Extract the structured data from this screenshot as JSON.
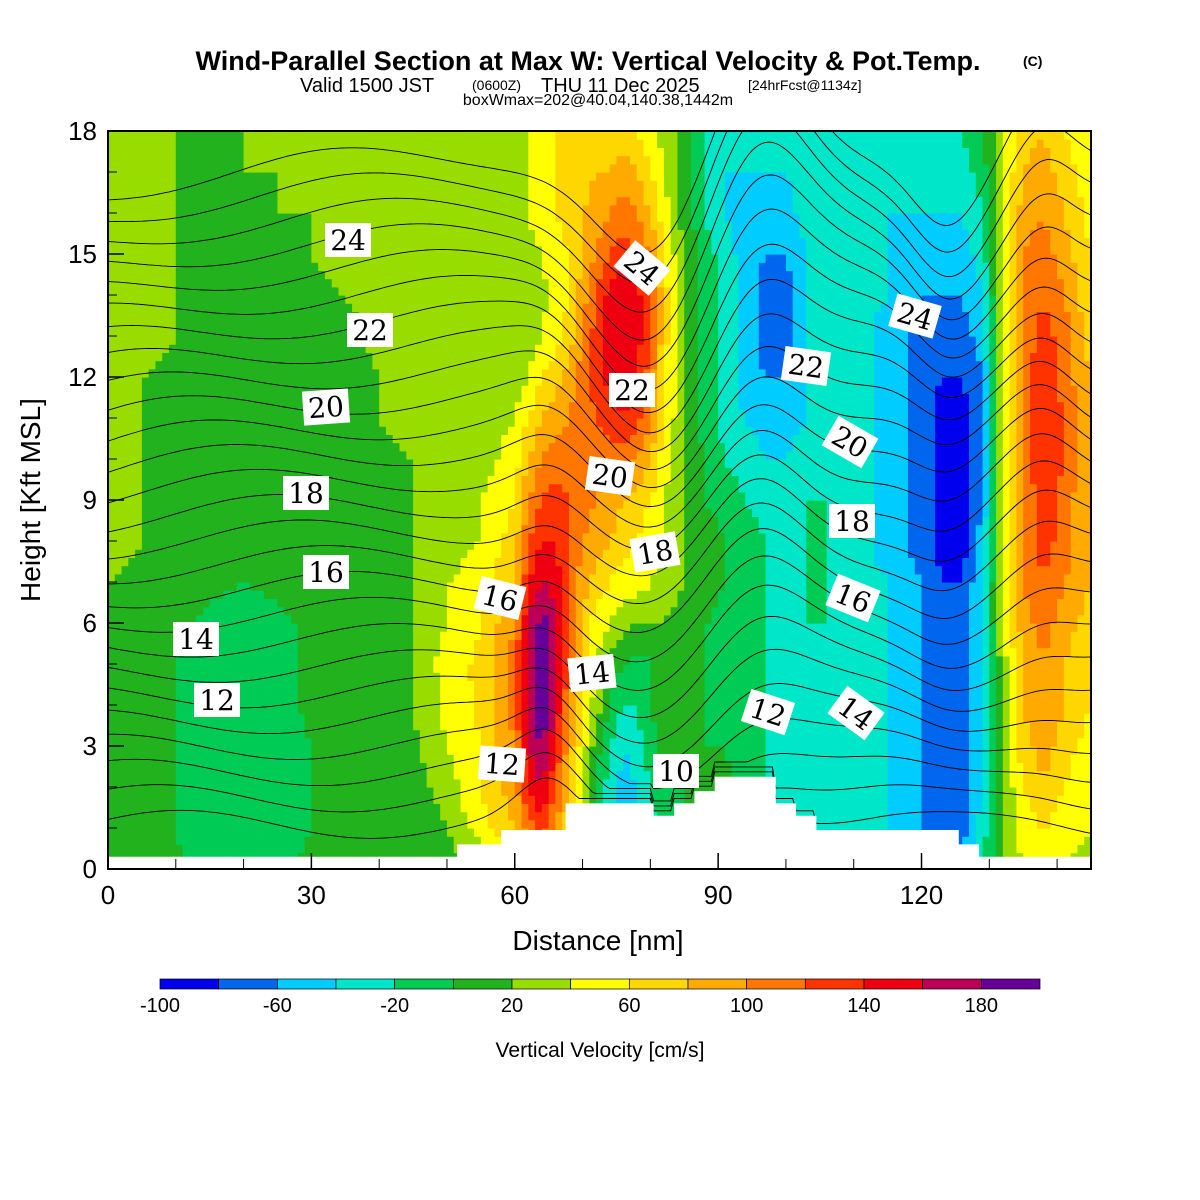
{
  "title": {
    "main": "Wind-Parallel Section at Max W: Vertical Velocity & Pot.Temp.",
    "main_mark": "(C)",
    "valid_a": "Valid 1500 JST",
    "valid_b": "(0600Z)",
    "valid_c": "THU 11 Dec 2025",
    "valid_d": "[24hrFcst@1134z]",
    "box": "boxWmax=202@40.04,140.38,1442m"
  },
  "chart_data": {
    "type": "heatmap",
    "xlabel": "Distance [nm]",
    "ylabel": "Height [Kft MSL]",
    "xlim": [
      0,
      145
    ],
    "ylim": [
      0,
      18
    ],
    "x_ticks": [
      0,
      30,
      60,
      90,
      120
    ],
    "y_ticks": [
      0,
      3,
      6,
      9,
      12,
      15,
      18
    ],
    "colorbar": {
      "title": "Vertical Velocity [cm/s]",
      "levels": [
        -100,
        -80,
        -60,
        -40,
        -20,
        0,
        20,
        40,
        60,
        80,
        100,
        120,
        140,
        160,
        180,
        200
      ],
      "tick_labels": [
        "-100",
        "-60",
        "-20",
        "20",
        "60",
        "100",
        "140",
        "180"
      ],
      "tick_values": [
        -100,
        -60,
        -20,
        20,
        60,
        100,
        140,
        180
      ],
      "colors": [
        "#0000ee",
        "#0066ee",
        "#00ccff",
        "#00e6c8",
        "#00cc55",
        "#22b21e",
        "#99dd00",
        "#ffff00",
        "#ffd700",
        "#ffaa00",
        "#ff7700",
        "#ff3300",
        "#ee0011",
        "#bb0055",
        "#660099"
      ]
    },
    "vertical_velocity_cms": {
      "x": [
        0,
        5,
        10,
        15,
        20,
        25,
        30,
        35,
        40,
        45,
        50,
        55,
        60,
        62,
        64,
        66,
        68,
        70,
        72,
        74,
        76,
        78,
        80,
        82,
        85,
        88,
        91,
        94,
        97,
        100,
        103,
        106,
        110,
        115,
        120,
        123,
        126,
        129,
        132,
        135,
        138,
        141,
        145
      ],
      "y": [
        0,
        1,
        2,
        3,
        4,
        5,
        6,
        7,
        8,
        9,
        10,
        11,
        12,
        13,
        14,
        15,
        16,
        17,
        18
      ],
      "w_rows": [
        [
          10,
          8,
          2,
          -5,
          -10,
          -5,
          5,
          5,
          0,
          5,
          10,
          20,
          30,
          60,
          80,
          60,
          40,
          20,
          -10,
          -40,
          -50,
          -40,
          -20,
          0,
          0,
          -5,
          0,
          -10,
          -20,
          -30,
          -30,
          -20,
          -30,
          -40,
          -50,
          -60,
          -50,
          -20,
          20,
          40,
          50,
          40,
          30
        ],
        [
          10,
          8,
          0,
          -10,
          -15,
          -10,
          0,
          5,
          0,
          5,
          20,
          50,
          80,
          110,
          130,
          100,
          60,
          30,
          0,
          -40,
          -60,
          -50,
          -30,
          -10,
          0,
          0,
          5,
          -10,
          -20,
          -30,
          -30,
          -25,
          -30,
          -40,
          -60,
          -80,
          -70,
          -30,
          20,
          50,
          60,
          50,
          40
        ],
        [
          10,
          8,
          0,
          -10,
          -15,
          -10,
          0,
          5,
          0,
          10,
          30,
          60,
          90,
          140,
          160,
          120,
          80,
          40,
          0,
          -30,
          -50,
          -40,
          -20,
          0,
          0,
          0,
          5,
          -5,
          -20,
          -30,
          -30,
          -25,
          -30,
          -40,
          -60,
          -80,
          -80,
          -40,
          20,
          60,
          80,
          60,
          40
        ],
        [
          10,
          8,
          0,
          -10,
          -15,
          -10,
          0,
          5,
          5,
          15,
          40,
          60,
          100,
          160,
          180,
          140,
          90,
          50,
          10,
          -20,
          -40,
          -30,
          -10,
          10,
          5,
          0,
          0,
          -10,
          -20,
          -30,
          -30,
          -20,
          -30,
          -40,
          -60,
          -80,
          -80,
          -40,
          30,
          70,
          90,
          70,
          50
        ],
        [
          15,
          10,
          0,
          -10,
          -15,
          -10,
          5,
          5,
          5,
          20,
          45,
          65,
          110,
          170,
          200,
          160,
          100,
          60,
          30,
          0,
          -20,
          -20,
          0,
          10,
          10,
          0,
          -5,
          -10,
          -20,
          -30,
          -25,
          -20,
          -25,
          -40,
          -60,
          -80,
          -80,
          -40,
          30,
          80,
          100,
          80,
          60
        ],
        [
          15,
          10,
          0,
          -10,
          -15,
          -10,
          5,
          10,
          10,
          20,
          50,
          65,
          110,
          170,
          200,
          170,
          110,
          70,
          40,
          15,
          0,
          -10,
          0,
          10,
          10,
          0,
          -5,
          -10,
          -20,
          -30,
          -25,
          -20,
          -25,
          -40,
          -60,
          -80,
          -80,
          -40,
          30,
          80,
          100,
          80,
          60
        ],
        [
          20,
          15,
          5,
          -5,
          -10,
          -5,
          5,
          10,
          10,
          20,
          40,
          60,
          100,
          160,
          190,
          170,
          120,
          80,
          50,
          40,
          30,
          20,
          20,
          20,
          10,
          0,
          -5,
          -10,
          -20,
          -30,
          -20,
          -20,
          -25,
          -40,
          -60,
          -80,
          -80,
          -40,
          40,
          90,
          110,
          90,
          70
        ],
        [
          20,
          15,
          10,
          5,
          0,
          5,
          10,
          10,
          10,
          20,
          40,
          50,
          80,
          140,
          160,
          150,
          120,
          90,
          70,
          60,
          50,
          50,
          40,
          30,
          20,
          10,
          0,
          -10,
          -20,
          -30,
          -20,
          -20,
          -30,
          -40,
          -60,
          -80,
          -80,
          -40,
          40,
          100,
          120,
          100,
          80
        ],
        [
          25,
          20,
          15,
          10,
          5,
          10,
          10,
          10,
          10,
          20,
          30,
          40,
          70,
          120,
          140,
          140,
          120,
          100,
          90,
          80,
          70,
          60,
          50,
          40,
          20,
          10,
          0,
          -10,
          -20,
          -30,
          -20,
          -20,
          -30,
          -50,
          -70,
          -90,
          -90,
          -50,
          40,
          100,
          130,
          110,
          80
        ],
        [
          25,
          20,
          15,
          10,
          10,
          10,
          10,
          10,
          10,
          20,
          30,
          40,
          60,
          100,
          120,
          130,
          120,
          110,
          100,
          90,
          80,
          70,
          60,
          40,
          20,
          0,
          -10,
          -20,
          -30,
          -30,
          -20,
          -20,
          -30,
          -50,
          -70,
          -90,
          -100,
          -60,
          40,
          100,
          130,
          110,
          80
        ],
        [
          25,
          20,
          15,
          10,
          10,
          10,
          10,
          10,
          15,
          20,
          25,
          30,
          50,
          80,
          100,
          110,
          110,
          110,
          110,
          110,
          110,
          100,
          80,
          50,
          20,
          0,
          -20,
          -30,
          -40,
          -40,
          -30,
          -20,
          -30,
          -50,
          -70,
          -90,
          -90,
          -60,
          40,
          110,
          140,
          120,
          80
        ],
        [
          25,
          20,
          15,
          10,
          10,
          10,
          10,
          10,
          20,
          25,
          30,
          30,
          40,
          60,
          80,
          90,
          100,
          110,
          120,
          130,
          140,
          130,
          100,
          60,
          20,
          -10,
          -30,
          -40,
          -50,
          -50,
          -40,
          -20,
          -30,
          -50,
          -70,
          -90,
          -90,
          -60,
          40,
          110,
          140,
          120,
          80
        ],
        [
          30,
          20,
          15,
          15,
          10,
          10,
          10,
          10,
          20,
          30,
          30,
          30,
          30,
          40,
          60,
          70,
          90,
          110,
          130,
          150,
          150,
          140,
          110,
          60,
          20,
          -10,
          -30,
          -50,
          -60,
          -60,
          -40,
          -20,
          -30,
          -50,
          -70,
          -80,
          -80,
          -60,
          40,
          110,
          140,
          110,
          80
        ],
        [
          30,
          25,
          20,
          15,
          10,
          10,
          15,
          15,
          25,
          30,
          30,
          30,
          30,
          30,
          40,
          50,
          70,
          100,
          130,
          150,
          160,
          150,
          120,
          70,
          20,
          -10,
          -30,
          -50,
          -70,
          -70,
          -40,
          -20,
          -30,
          -50,
          -70,
          -70,
          -70,
          -50,
          40,
          100,
          130,
          110,
          70
        ],
        [
          30,
          25,
          20,
          15,
          10,
          10,
          15,
          20,
          25,
          30,
          30,
          30,
          30,
          30,
          35,
          45,
          60,
          90,
          120,
          150,
          160,
          150,
          120,
          70,
          20,
          -10,
          -30,
          -50,
          -70,
          -70,
          -40,
          -20,
          -30,
          -40,
          -60,
          -60,
          -60,
          -40,
          40,
          100,
          120,
          100,
          60
        ],
        [
          30,
          25,
          20,
          15,
          15,
          15,
          20,
          25,
          30,
          30,
          30,
          30,
          30,
          35,
          40,
          50,
          60,
          80,
          100,
          120,
          130,
          120,
          100,
          60,
          20,
          -10,
          -30,
          -50,
          -60,
          -60,
          -40,
          -20,
          -30,
          -40,
          -50,
          -50,
          -50,
          -30,
          40,
          100,
          110,
          90,
          60
        ],
        [
          25,
          20,
          20,
          15,
          15,
          20,
          20,
          25,
          30,
          30,
          30,
          30,
          30,
          40,
          50,
          60,
          70,
          80,
          90,
          100,
          110,
          100,
          80,
          50,
          10,
          -20,
          -40,
          -50,
          -50,
          -50,
          -30,
          -20,
          -30,
          -40,
          -40,
          -40,
          -40,
          -20,
          40,
          90,
          100,
          80,
          50
        ],
        [
          25,
          20,
          20,
          15,
          20,
          20,
          25,
          25,
          30,
          30,
          30,
          30,
          30,
          40,
          50,
          60,
          70,
          70,
          80,
          80,
          90,
          80,
          60,
          40,
          10,
          -20,
          -40,
          -40,
          -40,
          -40,
          -30,
          -20,
          -30,
          -40,
          -40,
          -40,
          -30,
          -10,
          40,
          80,
          90,
          70,
          50
        ],
        [
          25,
          20,
          20,
          20,
          20,
          20,
          25,
          25,
          30,
          30,
          30,
          30,
          30,
          40,
          50,
          60,
          60,
          60,
          70,
          70,
          70,
          60,
          50,
          30,
          10,
          -20,
          -30,
          -40,
          -40,
          -40,
          -30,
          -20,
          -30,
          -30,
          -30,
          -30,
          -20,
          0,
          40,
          70,
          80,
          60,
          40
        ]
      ]
    },
    "potential_temperature_C": {
      "levels": [
        1,
        2,
        3,
        4,
        5,
        6,
        7,
        8,
        9,
        10,
        11,
        12,
        13,
        14,
        15,
        16,
        17,
        18,
        19,
        20,
        21,
        22,
        23,
        24,
        25,
        26
      ],
      "labels": [
        "24",
        "24",
        "24",
        "22",
        "22",
        "22",
        "20",
        "20",
        "20",
        "18",
        "18",
        "18",
        "16",
        "16",
        "16",
        "14",
        "14",
        "14",
        "12",
        "12",
        "12",
        "10"
      ],
      "label_values": [
        24,
        24,
        24,
        22,
        22,
        22,
        20,
        20,
        20,
        18,
        18,
        18,
        16,
        16,
        16,
        14,
        14,
        14,
        12,
        12,
        12,
        10
      ]
    },
    "terrain_kft": {
      "x": [
        0,
        51.5,
        51.5,
        58,
        58,
        67.5,
        67.5,
        80.5,
        80.5,
        83.5,
        83.5,
        86.5,
        86.5,
        89.5,
        89.5,
        92.5,
        92.5,
        98.5,
        98.5,
        101.5,
        101.5,
        104.5,
        104.5,
        125.5,
        125.5,
        128.5,
        128.5,
        145
      ],
      "h": [
        0.3,
        0.3,
        0.6,
        0.6,
        0.95,
        0.95,
        1.6,
        1.6,
        1.3,
        1.3,
        1.6,
        1.6,
        1.9,
        1.9,
        2.25,
        2.25,
        2.25,
        2.25,
        1.6,
        1.6,
        1.3,
        1.3,
        0.95,
        0.95,
        0.6,
        0.6,
        0.3,
        0.3
      ]
    }
  }
}
